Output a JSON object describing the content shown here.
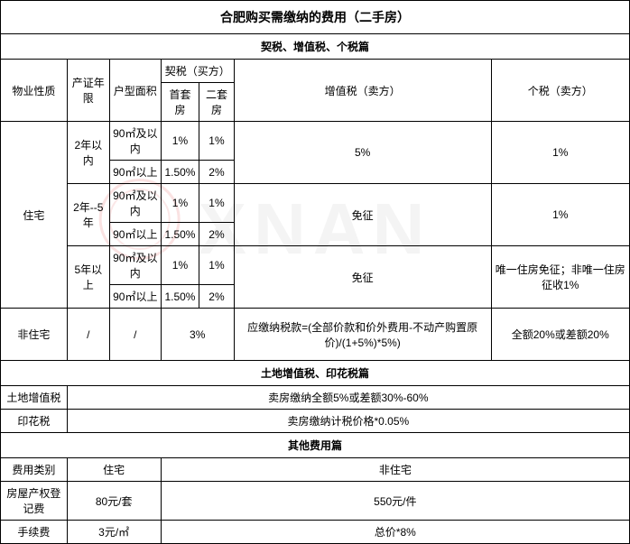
{
  "title": "合肥购买需缴纳的费用（二手房）",
  "section1": {
    "header": "契税、增值税、个税篇",
    "cols": {
      "c1": "物业性质",
      "c2": "产证年限",
      "c3": "户型面积",
      "c4": "契税（买方）",
      "c4a": "首套房",
      "c4b": "二套房",
      "c5": "增值税（卖方）",
      "c6": "个税（卖方）"
    },
    "prop1": "住宅",
    "periods": {
      "p1": "2年以内",
      "p2": "2年--5年",
      "p3": "5年以上"
    },
    "areas": {
      "a1": "90㎡及以内",
      "a2": "90㎡以上"
    },
    "rates": {
      "r1": "1%",
      "r150": "1.50%",
      "r2": "2%",
      "r3": "3%",
      "r5": "5%"
    },
    "vat2": "免征",
    "vat3": "免征",
    "tax3": "唯一住房免征；非唯一住房征收1%",
    "prop2": "非住宅",
    "slash": "/",
    "nonres_vat": "应缴纳税款=(全部价款和价外费用-不动产购置原价)/(1+5%)*5%)",
    "nonres_tax": "全额20%或差额20%"
  },
  "section2": {
    "header": "土地增值税、印花税篇",
    "row1": {
      "label": "土地增值税",
      "value": "卖房缴纳全额5%或差额30%-60%"
    },
    "row2": {
      "label": "印花税",
      "value": "卖房缴纳计税价格*0.05%"
    }
  },
  "section3": {
    "header": "其他费用篇",
    "cols": {
      "c1": "费用类别",
      "c2": "住宅",
      "c3": "非住宅"
    },
    "row1": {
      "label": "房屋产权登记费",
      "v1": "80元/套",
      "v2": "550元/件"
    },
    "row2": {
      "label": "手续费",
      "v1": "3元/㎡",
      "v2": "总价*8%"
    }
  }
}
